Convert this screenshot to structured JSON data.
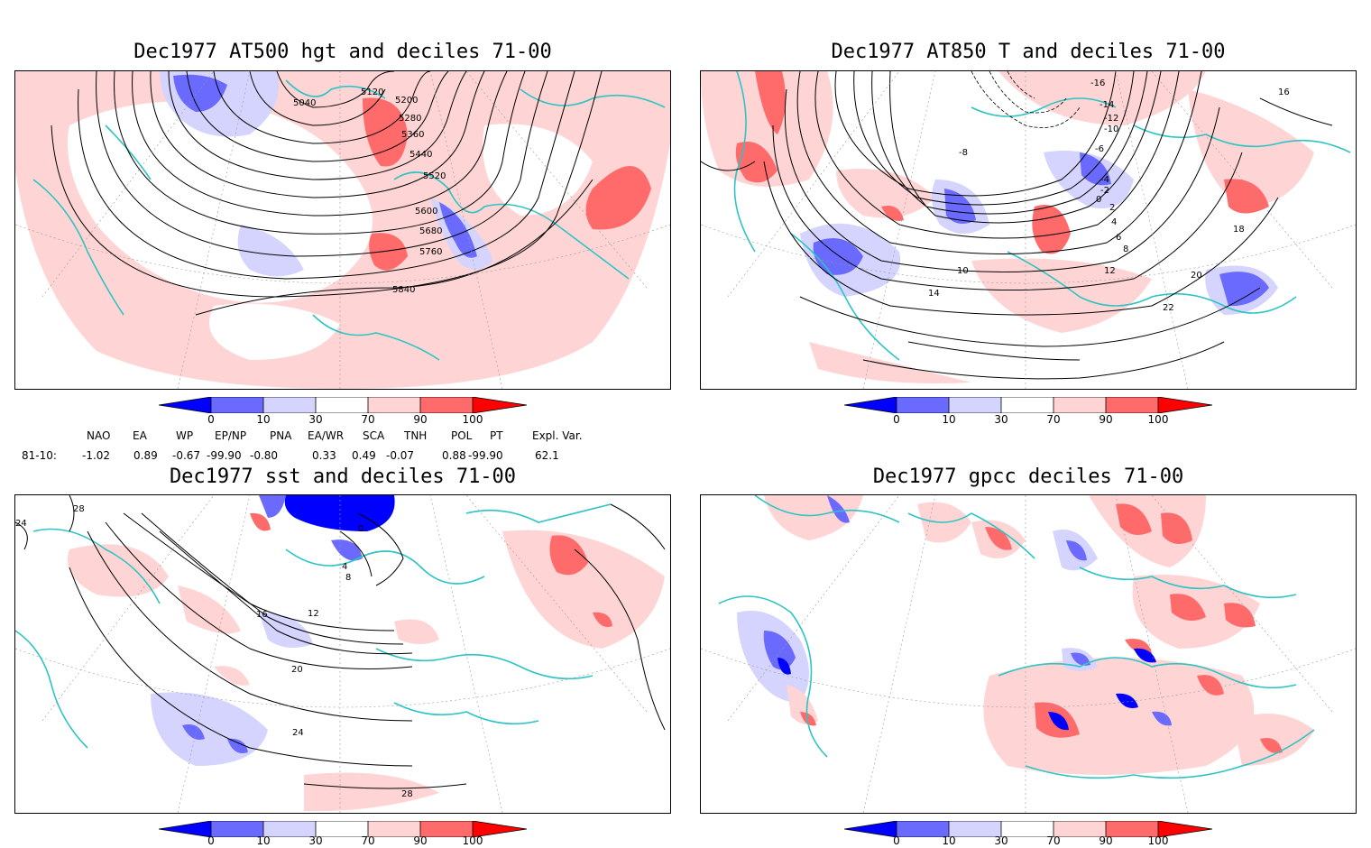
{
  "panels": {
    "tl": {
      "title": "Dec1977 AT500 hgt and deciles 71-00",
      "contour_labels": [
        "5040",
        "5120",
        "5200",
        "5280",
        "5360",
        "5440",
        "5520",
        "5600",
        "5680",
        "5760",
        "5840"
      ]
    },
    "tr": {
      "title": "Dec1977 AT850 T and deciles 71-00",
      "contour_labels": [
        "-16",
        "-14",
        "-12",
        "-10",
        "-8",
        "-6",
        "-4",
        "-2",
        "0",
        "2",
        "4",
        "6",
        "8",
        "10",
        "12",
        "14",
        "16",
        "18",
        "20",
        "22"
      ]
    },
    "bl": {
      "title": "Dec1977 sst and deciles 71-00",
      "contour_labels": [
        "24",
        "28",
        "0",
        "4",
        "8",
        "12",
        "16",
        "20",
        "24",
        "28"
      ]
    },
    "br": {
      "title": "Dec1977 gpcc deciles 71-00",
      "contour_labels": []
    }
  },
  "colorbar": {
    "ticks": [
      "0",
      "10",
      "30",
      "70",
      "90",
      "100"
    ],
    "colors": [
      "#0000ff",
      "#6a6aff",
      "#d4d4ff",
      "#ffffff",
      "#ffd4d4",
      "#ff6a6a",
      "#ff0000"
    ]
  },
  "indices": {
    "headers": [
      "NAO",
      "EA",
      "WP",
      "EP/NP",
      "PNA",
      "EA/WR",
      "SCA",
      "TNH",
      "POL",
      "PT",
      "Expl. Var."
    ],
    "row_label": "81-10:",
    "values": [
      "-1.02",
      "0.89",
      "-0.67",
      "-99.90",
      "-0.80",
      "0.33",
      "0.49",
      "-0.07",
      "0.88",
      "-99.90",
      "62.1"
    ]
  },
  "colors": {
    "coast": "#2ec4c4",
    "light_red": "#ffd4d4",
    "mid_red": "#ff6a6a",
    "light_blue": "#d4d4ff",
    "mid_blue": "#6a6aff",
    "deep_blue": "#0000ff"
  }
}
